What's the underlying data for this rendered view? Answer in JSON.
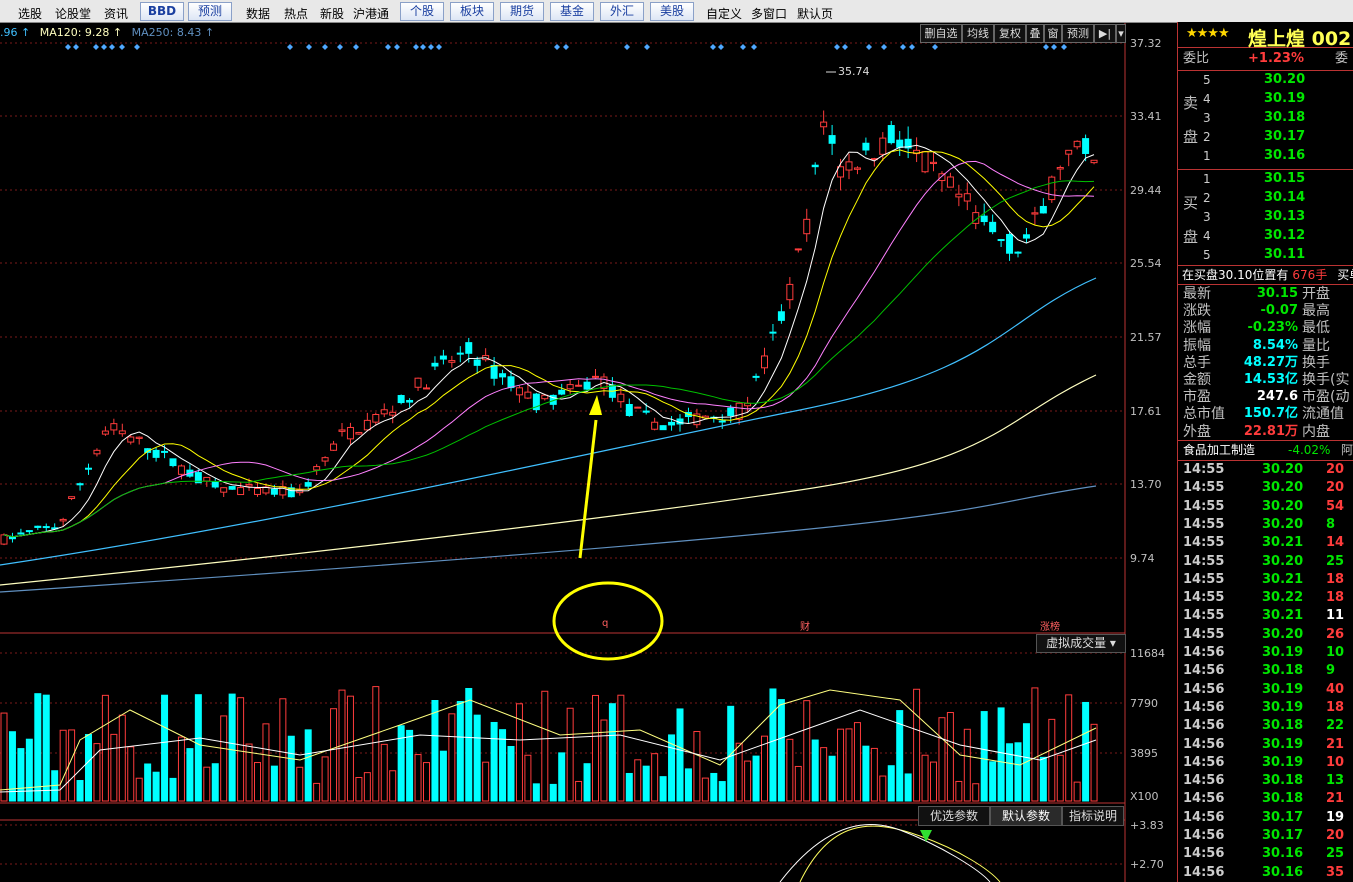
{
  "toolbar": {
    "left_items": [
      "选股",
      "论股堂",
      "资讯"
    ],
    "boxes": [
      "BBD",
      "预测"
    ],
    "mid_items": [
      "数据",
      "热点",
      "新股",
      "沪港通"
    ],
    "market_boxes": [
      "个股",
      "板块",
      "期货",
      "基金",
      "外汇",
      "美股"
    ],
    "right_items": [
      "自定义",
      "多窗口",
      "默认页"
    ]
  },
  "ma_legend": {
    "ma60": ".96 ↑",
    "ma120": "MA120: 9.28 ↑",
    "ma250": "MA250: 8.43 ↑"
  },
  "chart_buttons": [
    "删自选",
    "均线",
    "复权",
    "叠",
    "窗",
    "预测",
    "▶|",
    "▾"
  ],
  "price_axis": [
    "37.32",
    "33.41",
    "29.44",
    "25.54",
    "21.57",
    "17.61",
    "13.70",
    "9.74"
  ],
  "volume_axis": [
    "11684",
    "7790",
    "3895",
    "X100"
  ],
  "indicator_axis": [
    "+3.83",
    "+2.70"
  ],
  "high_label": "35.74",
  "markers": {
    "q": "q",
    "cai": "财",
    "zhangbang": "涨榜"
  },
  "volume_button": "虚拟成交量 ▾",
  "param_buttons": [
    "优选参数",
    "默认参数",
    "指标说明"
  ],
  "colors": {
    "up": "#ff3c3c",
    "down": "#00ffff",
    "ma5": "#ffffff",
    "ma10": "#ffff00",
    "ma20": "#ff80ff",
    "ma30": "#00c000",
    "ma60": "#40c0ff",
    "ma120": "#ffffc0",
    "ma250": "#6090c0",
    "annotation": "#ffff00"
  },
  "quote": {
    "stars": "★★★★",
    "name": "煌上煌 002",
    "weibi_label": "委比",
    "weibi_value": "+1.23%",
    "weicha_label": "委",
    "sell_label": [
      "卖",
      "盘"
    ],
    "buy_label": [
      "买",
      "盘"
    ],
    "sell": [
      {
        "n": "5",
        "p": "30.20"
      },
      {
        "n": "4",
        "p": "30.19"
      },
      {
        "n": "3",
        "p": "30.18"
      },
      {
        "n": "2",
        "p": "30.17"
      },
      {
        "n": "1",
        "p": "30.16"
      }
    ],
    "buy": [
      {
        "n": "1",
        "p": "30.15"
      },
      {
        "n": "2",
        "p": "30.14"
      },
      {
        "n": "3",
        "p": "30.13"
      },
      {
        "n": "4",
        "p": "30.12"
      },
      {
        "n": "5",
        "p": "30.11"
      }
    ],
    "position_note": "在买盘30.10位置有",
    "position_qty": "676手",
    "position_tail": "买单",
    "stats": [
      {
        "l": "最新",
        "v": "30.15",
        "c": "green",
        "r": "开盘"
      },
      {
        "l": "涨跌",
        "v": "-0.07",
        "c": "green",
        "r": "最高"
      },
      {
        "l": "涨幅",
        "v": "-0.23%",
        "c": "green",
        "r": "最低"
      },
      {
        "l": "振幅",
        "v": "8.54%",
        "c": "cyan",
        "r": "量比"
      },
      {
        "l": "总手",
        "v": "48.27万",
        "c": "cyan",
        "r": "换手"
      },
      {
        "l": "金额",
        "v": "14.53亿",
        "c": "cyan",
        "r": "换手(实"
      },
      {
        "l": "市盈",
        "v": "247.6",
        "c": "white",
        "r": "市盈(动"
      },
      {
        "l": "总市值",
        "v": "150.7亿",
        "c": "cyan",
        "r": "流通值"
      },
      {
        "l": "外盘",
        "v": "22.81万",
        "c": "red",
        "r": "内盘"
      }
    ],
    "sector_name": "食品加工制造",
    "sector_change": "-4.02%",
    "sector_tail": "阿",
    "ticks": [
      {
        "t": "14:55",
        "p": "30.20",
        "v": "20",
        "c": "red"
      },
      {
        "t": "14:55",
        "p": "30.20",
        "v": "20",
        "c": "red"
      },
      {
        "t": "14:55",
        "p": "30.20",
        "v": "54",
        "c": "red"
      },
      {
        "t": "14:55",
        "p": "30.20",
        "v": "8",
        "c": "green"
      },
      {
        "t": "14:55",
        "p": "30.21",
        "v": "14",
        "c": "red"
      },
      {
        "t": "14:55",
        "p": "30.20",
        "v": "25",
        "c": "green"
      },
      {
        "t": "14:55",
        "p": "30.21",
        "v": "18",
        "c": "red"
      },
      {
        "t": "14:55",
        "p": "30.22",
        "v": "18",
        "c": "red",
        "pc": "white"
      },
      {
        "t": "14:55",
        "p": "30.21",
        "v": "11",
        "c": "white"
      },
      {
        "t": "14:55",
        "p": "30.20",
        "v": "26",
        "c": "red"
      },
      {
        "t": "14:56",
        "p": "30.19",
        "v": "10",
        "c": "green"
      },
      {
        "t": "14:56",
        "p": "30.18",
        "v": "9",
        "c": "green"
      },
      {
        "t": "14:56",
        "p": "30.19",
        "v": "40",
        "c": "red"
      },
      {
        "t": "14:56",
        "p": "30.19",
        "v": "18",
        "c": "red"
      },
      {
        "t": "14:56",
        "p": "30.18",
        "v": "22",
        "c": "green"
      },
      {
        "t": "14:56",
        "p": "30.19",
        "v": "21",
        "c": "red"
      },
      {
        "t": "14:56",
        "p": "30.19",
        "v": "10",
        "c": "red"
      },
      {
        "t": "14:56",
        "p": "30.18",
        "v": "13",
        "c": "green"
      },
      {
        "t": "14:56",
        "p": "30.18",
        "v": "21",
        "c": "red"
      },
      {
        "t": "14:56",
        "p": "30.17",
        "v": "19",
        "c": "white"
      },
      {
        "t": "14:56",
        "p": "30.17",
        "v": "20",
        "c": "red"
      },
      {
        "t": "14:56",
        "p": "30.16",
        "v": "25",
        "c": "green"
      },
      {
        "t": "14:56",
        "p": "30.16",
        "v": "35",
        "c": "red"
      }
    ]
  }
}
